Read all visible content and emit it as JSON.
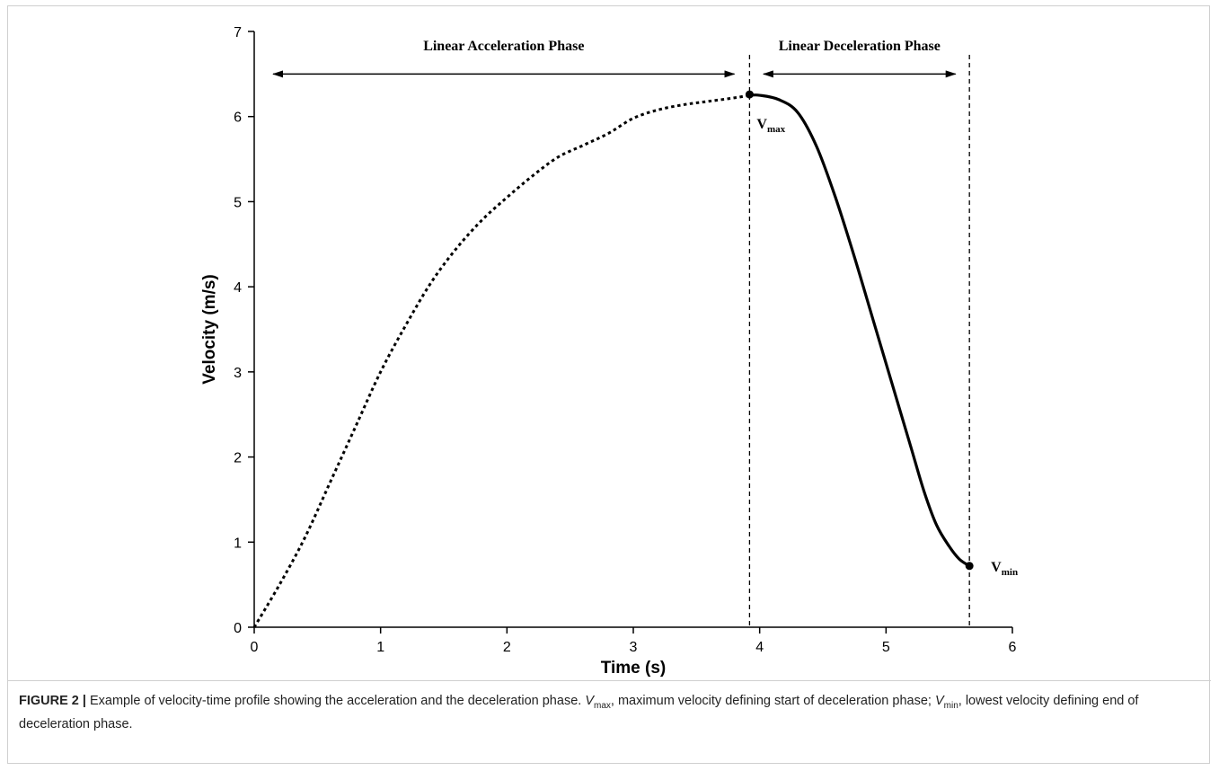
{
  "chart_data": {
    "type": "line",
    "xlabel": "Time (s)",
    "ylabel": "Velocity (m/s)",
    "xlim": [
      0,
      6
    ],
    "ylim": [
      0,
      7
    ],
    "xticks": [
      "0",
      "1",
      "2",
      "3",
      "4",
      "5",
      "6"
    ],
    "yticks": [
      "0",
      "1",
      "2",
      "3",
      "4",
      "5",
      "6",
      "7"
    ],
    "grid": false,
    "series": [
      {
        "style": "dotted",
        "x": [
          0,
          0.2,
          0.4,
          0.6,
          0.8,
          1.0,
          1.2,
          1.4,
          1.6,
          1.8,
          2.0,
          2.2,
          2.4,
          2.6,
          2.8,
          3.0,
          3.2,
          3.4,
          3.6,
          3.8,
          3.92
        ],
        "y": [
          0,
          0.5,
          1.05,
          1.7,
          2.35,
          3.0,
          3.55,
          4.05,
          4.45,
          4.78,
          5.05,
          5.3,
          5.52,
          5.66,
          5.8,
          5.98,
          6.08,
          6.14,
          6.18,
          6.22,
          6.25
        ]
      },
      {
        "style": "solid",
        "x": [
          3.92,
          4.0,
          4.15,
          4.3,
          4.45,
          4.6,
          4.75,
          4.9,
          5.05,
          5.2,
          5.3,
          5.4,
          5.5,
          5.58,
          5.66
        ],
        "y": [
          6.25,
          6.25,
          6.2,
          6.05,
          5.65,
          5.05,
          4.35,
          3.6,
          2.85,
          2.1,
          1.6,
          1.2,
          0.95,
          0.8,
          0.72
        ]
      }
    ],
    "points": [
      {
        "name": "V",
        "sub": "max",
        "x": 3.92,
        "y": 6.26
      },
      {
        "name": "V",
        "sub": "min",
        "x": 5.66,
        "y": 0.72
      }
    ],
    "vlines": [
      3.92,
      5.66
    ],
    "phases": [
      {
        "label": "Linear Acceleration Phase",
        "x_start": 0.15,
        "x_end": 3.8,
        "y": 6.5
      },
      {
        "label": "Linear Deceleration Phase",
        "x_start": 4.03,
        "x_end": 5.55,
        "y": 6.5
      }
    ]
  },
  "caption": {
    "figure_number": "FIGURE 2 |",
    "intro": " Example of velocity-time profile showing the acceleration and the deceleration phase. ",
    "vmax_symbol": "V",
    "vmax_sub": "max",
    "vmax_text": ", maximum velocity defining start of deceleration phase; ",
    "vmin_symbol": "V",
    "vmin_sub": "min",
    "vmin_text": ", lowest velocity defining end of deceleration phase."
  }
}
